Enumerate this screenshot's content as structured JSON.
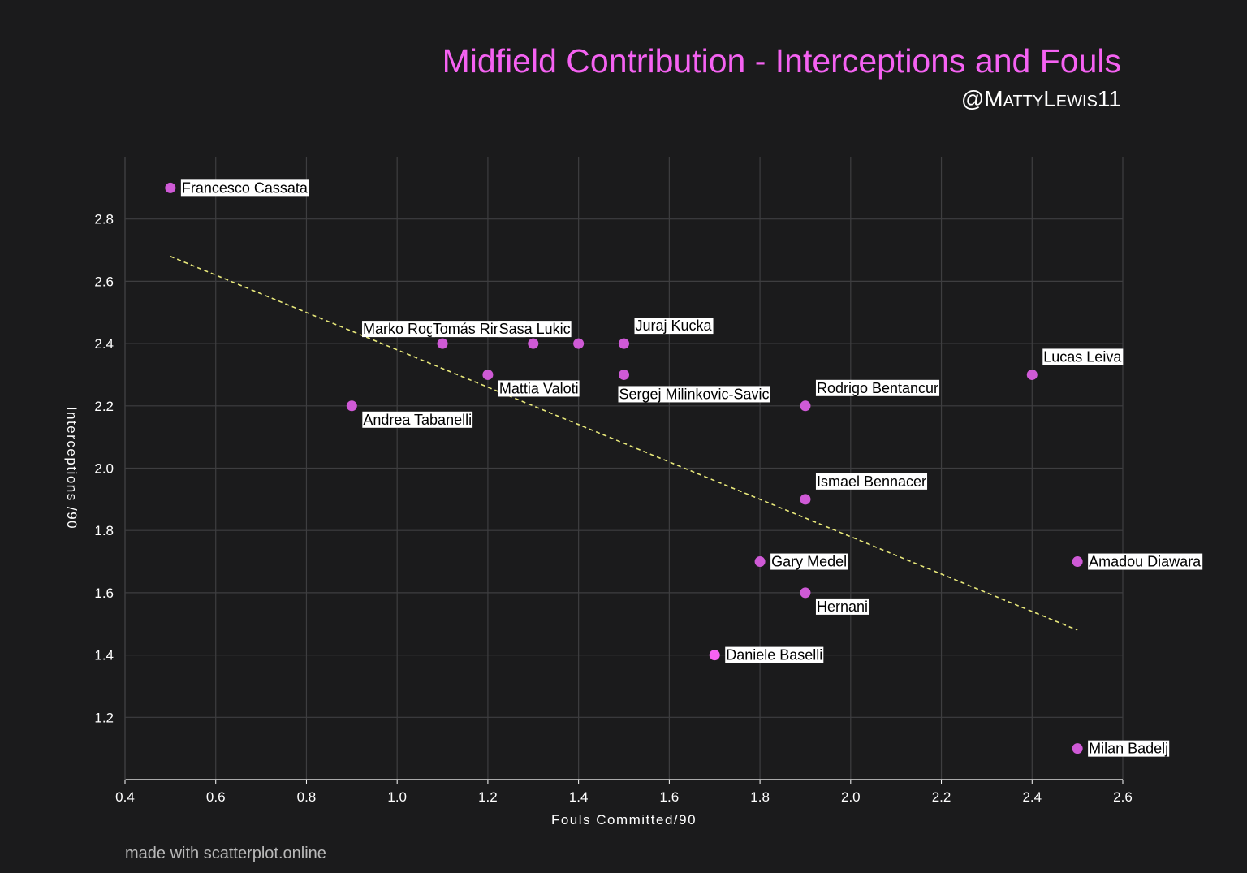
{
  "header": {
    "title": "Midfield Contribution - Interceptions and Fouls",
    "subtitle": "@MattyLewis11"
  },
  "footer": {
    "credit": "made with scatterplot.online"
  },
  "colors": {
    "background": "#1b1b1c",
    "title": "#f562f2",
    "point": "#cf5ad6",
    "point_highlight": "#f562f2",
    "trendline": "#e8e87a",
    "grid": "#3e3e40",
    "axis_text": "#ffffff"
  },
  "chart_data": {
    "type": "scatter",
    "xlabel": "Fouls Committed/90",
    "ylabel": "Interceptions /90",
    "xlim": [
      0.4,
      2.6
    ],
    "ylim": [
      1.0,
      3.0
    ],
    "xticks": [
      "0.4",
      "0.6",
      "0.8",
      "1.0",
      "1.2",
      "1.4",
      "1.6",
      "1.8",
      "2.0",
      "2.2",
      "2.4",
      "2.6"
    ],
    "yticks": [
      "1.2",
      "1.4",
      "1.6",
      "1.8",
      "2.0",
      "2.2",
      "2.4",
      "2.6",
      "2.8"
    ],
    "grid": true,
    "trendline": {
      "x": [
        0.5,
        2.5
      ],
      "y": [
        2.68,
        1.48
      ]
    },
    "points": [
      {
        "name": "Francesco Cassata",
        "x": 0.5,
        "y": 2.9,
        "label_pos": "right"
      },
      {
        "name": "Marko Rog",
        "x": 1.1,
        "y": 2.4,
        "label_pos": "upper-left"
      },
      {
        "name": "Tomás Rincón",
        "x": 1.3,
        "y": 2.4,
        "label_pos": "upper-left"
      },
      {
        "name": "Sasa Lukic",
        "x": 1.4,
        "y": 2.4,
        "label_pos": "upper-left"
      },
      {
        "name": "Juraj Kucka",
        "x": 1.5,
        "y": 2.4,
        "label_pos": "upper-right"
      },
      {
        "name": "Mattia Valoti",
        "x": 1.2,
        "y": 2.3,
        "label_pos": "lower-right"
      },
      {
        "name": "Sergej Milinkovic-Savic",
        "x": 1.5,
        "y": 2.3,
        "label_pos": "below"
      },
      {
        "name": "Andrea Tabanelli",
        "x": 0.9,
        "y": 2.2,
        "label_pos": "lower-right"
      },
      {
        "name": "Rodrigo Bentancur",
        "x": 1.9,
        "y": 2.2,
        "label_pos": "upper-right"
      },
      {
        "name": "Lucas Leiva",
        "x": 2.4,
        "y": 2.3,
        "label_pos": "upper-right"
      },
      {
        "name": "Ismael Bennacer",
        "x": 1.9,
        "y": 1.9,
        "label_pos": "upper-right"
      },
      {
        "name": "Gary Medel",
        "x": 1.8,
        "y": 1.7,
        "label_pos": "right"
      },
      {
        "name": "Amadou Diawara",
        "x": 2.5,
        "y": 1.7,
        "label_pos": "right"
      },
      {
        "name": "Hernani",
        "x": 1.9,
        "y": 1.6,
        "label_pos": "lower-right"
      },
      {
        "name": "Daniele Baselli",
        "x": 1.7,
        "y": 1.4,
        "label_pos": "right",
        "highlight": true
      },
      {
        "name": "Milan Badelj",
        "x": 2.5,
        "y": 1.1,
        "label_pos": "right"
      }
    ]
  }
}
